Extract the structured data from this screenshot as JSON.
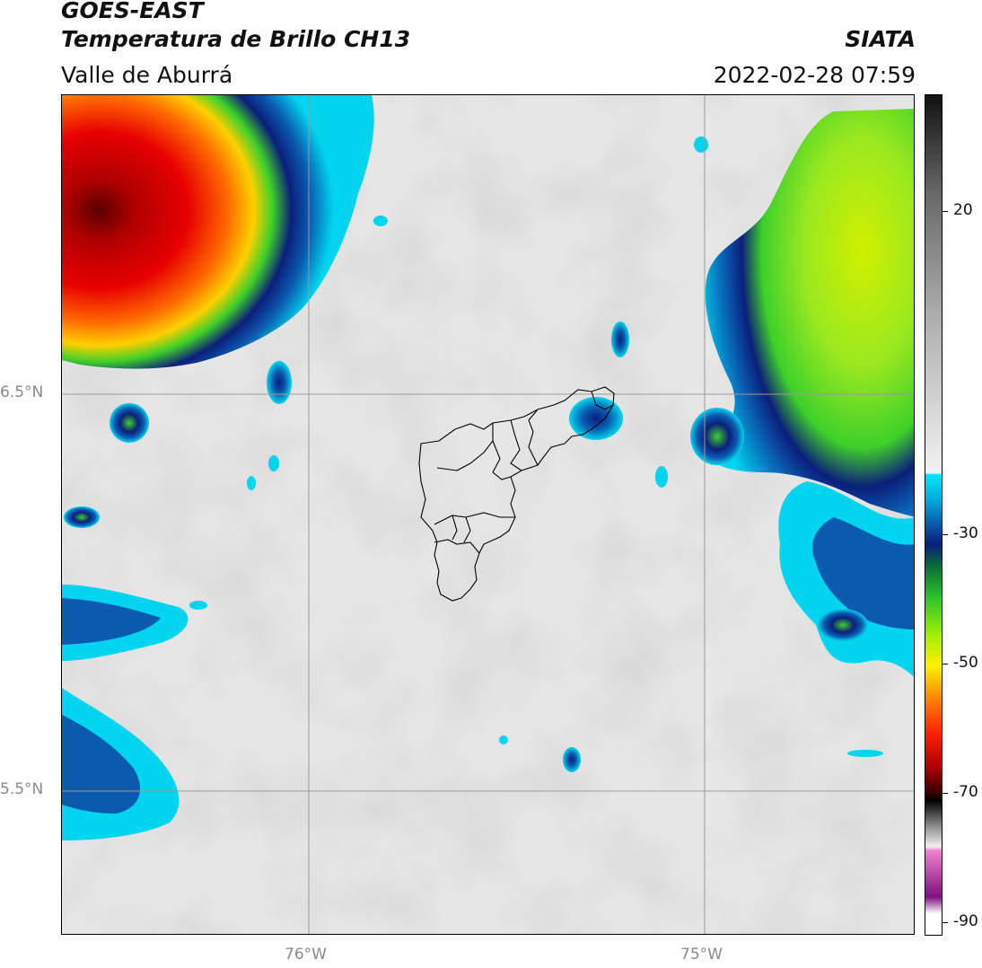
{
  "header": {
    "satellite": "GOES-EAST",
    "product": "Temperatura de Brillo CH13",
    "organization": "SIATA",
    "region": "Valle de Aburrá",
    "datetime": "2022-02-28 07:59"
  },
  "axes": {
    "latitude_labels": [
      "6.5°N",
      "5.5°N"
    ],
    "longitude_labels": [
      "76°W",
      "75°W"
    ]
  },
  "colorbar": {
    "tick_labels": [
      "20",
      "-30",
      "-50",
      "-70",
      "-90"
    ],
    "range": [
      -92,
      38
    ],
    "units_note": ""
  },
  "colors": {
    "clear_sky": "#e4e4e4",
    "cyan": "#00d4ee",
    "blue": "#0a5bb0",
    "navy": "#0b1f7a",
    "green": "#3ed02a",
    "lime": "#a8f000",
    "yellow": "#fff000",
    "orange": "#ff8000",
    "red": "#e80000",
    "darkred": "#6a0000",
    "magenta": "#c050c0"
  }
}
